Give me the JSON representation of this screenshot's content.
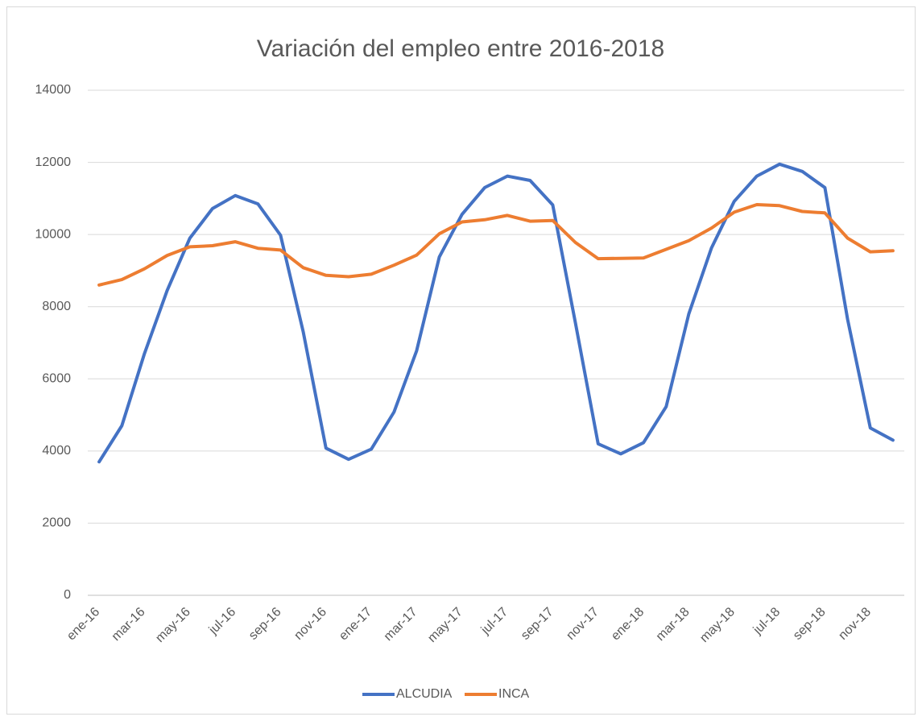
{
  "chart_data": {
    "type": "line",
    "title": "Variación del empleo entre 2016-2018",
    "categories": [
      "ene-16",
      null,
      "mar-16",
      null,
      "may-16",
      null,
      "jul-16",
      null,
      "sep-16",
      null,
      "nov-16",
      null,
      "ene-17",
      null,
      "mar-17",
      null,
      "may-17",
      null,
      "jul-17",
      null,
      "sep-17",
      null,
      "nov-17",
      null,
      "ene-18",
      null,
      "mar-18",
      null,
      "may-18",
      null,
      "jul-18",
      null,
      "sep-18",
      null,
      "nov-18",
      null
    ],
    "series": [
      {
        "name": "ALCUDIA",
        "color": "#4472c4",
        "values": [
          3700,
          4700,
          6700,
          8450,
          9900,
          10720,
          11080,
          10850,
          9980,
          7300,
          4080,
          3770,
          4050,
          5080,
          6780,
          9380,
          10560,
          11300,
          11620,
          11500,
          10820,
          7550,
          4200,
          3920,
          4230,
          5230,
          7800,
          9630,
          10920,
          11620,
          11950,
          11750,
          11300,
          7650,
          4640,
          4300
        ]
      },
      {
        "name": "INCA",
        "color": "#ed7d31",
        "values": [
          8600,
          8750,
          9050,
          9420,
          9660,
          9690,
          9800,
          9620,
          9570,
          9080,
          8870,
          8830,
          8900,
          9150,
          9430,
          10020,
          10350,
          10410,
          10530,
          10370,
          10390,
          9780,
          9330,
          9340,
          9350,
          9590,
          9830,
          10180,
          10620,
          10830,
          10800,
          10640,
          10600,
          9900,
          9520,
          9550
        ]
      }
    ],
    "ylim": [
      0,
      14000
    ],
    "yticks": [
      0,
      2000,
      4000,
      6000,
      8000,
      10000,
      12000,
      14000
    ],
    "grid": true,
    "legend": "bottom"
  }
}
